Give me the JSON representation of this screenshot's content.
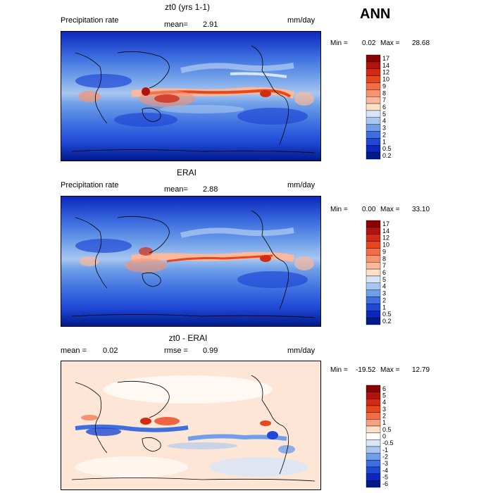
{
  "season": "ANN",
  "panels": [
    {
      "title": "zt0 (yrs 1-1)",
      "variable": "Precipitation rate",
      "stat1_label": "mean=",
      "stat1_value": "2.91",
      "stat2_label": "",
      "stat2_value": "",
      "units": "mm/day",
      "min_label": "Min =",
      "min_value": "0.02",
      "max_label": "Max =",
      "max_value": "28.68",
      "colorbar_levels": [
        "17",
        "14",
        "12",
        "10",
        "9",
        "8",
        "7",
        "6",
        "5",
        "4",
        "3",
        "2",
        "1",
        "0.5",
        "0.2"
      ]
    },
    {
      "title": "ERAI",
      "variable": "Precipitation rate",
      "stat1_label": "mean=",
      "stat1_value": "2.88",
      "stat2_label": "",
      "stat2_value": "",
      "units": "mm/day",
      "min_label": "Min =",
      "min_value": "0.00",
      "max_label": "Max =",
      "max_value": "33.10",
      "colorbar_levels": [
        "17",
        "14",
        "12",
        "10",
        "9",
        "8",
        "7",
        "6",
        "5",
        "4",
        "3",
        "2",
        "1",
        "0.5",
        "0.2"
      ]
    },
    {
      "title": "zt0 - ERAI",
      "variable": "",
      "stat1_label": "mean =",
      "stat1_value": "0.02",
      "stat2_label": "rmse =",
      "stat2_value": "0.99",
      "units": "mm/day",
      "min_label": "Min =",
      "min_value": "-19.52",
      "max_label": "Max =",
      "max_value": "12.79",
      "colorbar_levels": [
        "6",
        "5",
        "4",
        "3",
        "2",
        "1",
        "0.5",
        "0",
        "-0.5",
        "-1",
        "-2",
        "-3",
        "-4",
        "-5",
        "-6"
      ]
    }
  ],
  "colors": {
    "precip_scale": [
      "#8b0000",
      "#b2120c",
      "#d42a14",
      "#e8461c",
      "#f26d46",
      "#f7936e",
      "#fbb89a",
      "#fde2c8",
      "#d6e6f8",
      "#a8c6f0",
      "#6f9fe8",
      "#3d6fe0",
      "#1f48d6",
      "#0b27bf",
      "#001a8a"
    ],
    "diff_scale": [
      "#8b0000",
      "#b2120c",
      "#d42a14",
      "#e8461c",
      "#f26d46",
      "#f7a080",
      "#fde0cc",
      "#ffffff",
      "#d8e6f8",
      "#a8c6f0",
      "#6f9fe8",
      "#3d6fe0",
      "#1f48d6",
      "#0b27bf",
      "#001a8a"
    ]
  }
}
